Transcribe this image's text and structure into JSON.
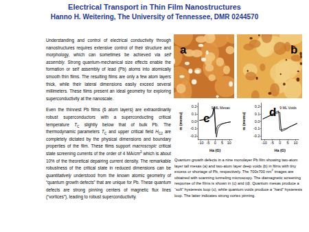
{
  "header": {
    "title": "Electrical Transport in Thin Film Nanostructures",
    "subtitle": "Hanno H. Weitering, The University of Tennessee, DMR 0244570"
  },
  "body": {
    "paragraphs": [
      [
        "Understanding and control of electrical conductivity through nanostructures requires extensive control of their structure and morphology, which can sometimes be achieved via ",
        {
          "text": "self assembly",
          "style": "italic"
        },
        ". Strong quantum-mechanical size effects enable the formation or self assembly of lead (Pb) atoms into atomically smooth thin films. The resulting films are only a few atom layers thick, while their lateral dimensions easily exceed several millimeters. These films present an ideal geometry for exploring superconductivity at the nanoscale."
      ],
      [
        "Even the thinnest Pb films (6 atom layers) are extraordinarily robust superconductors with a superconducting critical temperature ",
        {
          "text": "T",
          "style": "italic"
        },
        {
          "text": "C",
          "style": "sub"
        },
        " slightly below that of bulk Pb. The thermodynamic parameters ",
        {
          "text": "T",
          "style": "italic"
        },
        {
          "text": "C",
          "style": "sub"
        },
        " and upper critical field ",
        {
          "text": "H",
          "style": "italic"
        },
        {
          "text": "C2",
          "style": "sub"
        },
        " are completely dictated by the physical dimensions and boundary properties of the film. These films support ",
        {
          "text": "macroscopic",
          "style": "italic"
        },
        " critical state screening currents of the order of 4 MA/cm",
        {
          "text": "2",
          "style": "sup"
        },
        " which is about 10% of the theoretical depairing current density. The remarkable robustness of the critical state in reduced dimensions can be ",
        {
          "text": "quantitatively",
          "style": "italic"
        },
        " understood from the known atomic geometry of “quantum growth defects” that are unique for Pb. These quantum defects are strong pinning centers of magnetic flux lines (“vortices”), leading to robust superconductivity."
      ]
    ]
  },
  "panel_labels": [
    "a",
    "b",
    "c",
    "d"
  ],
  "chart_data": [
    {
      "type": "line",
      "annotation": "9 ML Mesas",
      "x_label": "Ha (G)",
      "y_label": "m (memu)",
      "xlim": [
        -12,
        12
      ],
      "xticks": [
        -10,
        -5,
        0,
        5,
        10
      ],
      "ylim": [
        -0.25,
        0.25
      ],
      "yticks": [
        -0.2,
        -0.1,
        {
          "value": 0,
          "label": "0.0"
        },
        0.1,
        0.2
      ],
      "tick_labels": true,
      "grid": false,
      "series": [
        {
          "color": "#000000",
          "x": [
            -11,
            -8,
            -6,
            -4,
            -2,
            -1,
            -0.5,
            0,
            0.5,
            1,
            2,
            4,
            6,
            8,
            11
          ],
          "values": [
            0.01,
            0.02,
            0.03,
            0.04,
            0.07,
            0.12,
            0.2,
            0.05,
            -0.12,
            -0.22,
            -0.1,
            -0.05,
            -0.03,
            -0.02,
            -0.01
          ]
        },
        {
          "color": "#000000",
          "x": [
            11,
            8,
            6,
            4,
            2,
            1,
            0.5,
            0,
            -0.5,
            -1,
            -2,
            -4,
            -6,
            -8,
            -11
          ],
          "values": [
            -0.01,
            -0.02,
            -0.03,
            -0.04,
            -0.06,
            -0.1,
            -0.17,
            -0.04,
            0.1,
            0.18,
            0.09,
            0.05,
            0.03,
            0.02,
            0.01
          ]
        }
      ]
    },
    {
      "type": "line",
      "annotation": "9 ML Voids",
      "x_label": "Ha (G)",
      "y_label": "m (memu)",
      "xlim": [
        -12,
        12
      ],
      "xticks": [
        -10,
        -5,
        0,
        5,
        10
      ],
      "ylim": [
        -0.25,
        0.25
      ],
      "yticks": [
        -0.2,
        -0.1,
        {
          "value": 0,
          "label": "0.0"
        },
        0.1,
        0.2
      ],
      "tick_labels": true,
      "grid": false,
      "series": [
        {
          "color": "#000000",
          "x": [
            -11,
            -8,
            -6,
            -4,
            -2,
            -1,
            0,
            0.5,
            1,
            2,
            4,
            6,
            8,
            11
          ],
          "values": [
            0.03,
            0.06,
            0.08,
            0.1,
            0.11,
            0.12,
            0.12,
            -0.05,
            -0.14,
            -0.13,
            -0.11,
            -0.08,
            -0.06,
            -0.03
          ]
        },
        {
          "color": "#000000",
          "x": [
            11,
            8,
            6,
            4,
            2,
            1,
            0,
            -0.5,
            -1,
            -2,
            -4,
            -6,
            -8,
            -11
          ],
          "values": [
            -0.03,
            -0.06,
            -0.08,
            -0.1,
            -0.11,
            -0.12,
            -0.12,
            0.05,
            0.14,
            0.13,
            0.11,
            0.08,
            0.06,
            0.03
          ]
        }
      ]
    }
  ],
  "caption": [
    "Quantum growth defects in a nine monolayer  Pb film showing two-atom layer tall mesas (a) and two-atom layer deep voids (b) in films with tiny excess or shortage of Pb, respectively. The 700x700 nm",
    {
      "text": "2",
      "style": "sup"
    },
    " images are obtained with scanning tunneling microscopy. The diamagnetic screening response of the films is shown in (c) and (d). Quantum mesas produce a “soft” hysteresis loop (c), while quantum voids produce a “hard” hysteresis loop. The latter indicates strong vortex pinning."
  ]
}
